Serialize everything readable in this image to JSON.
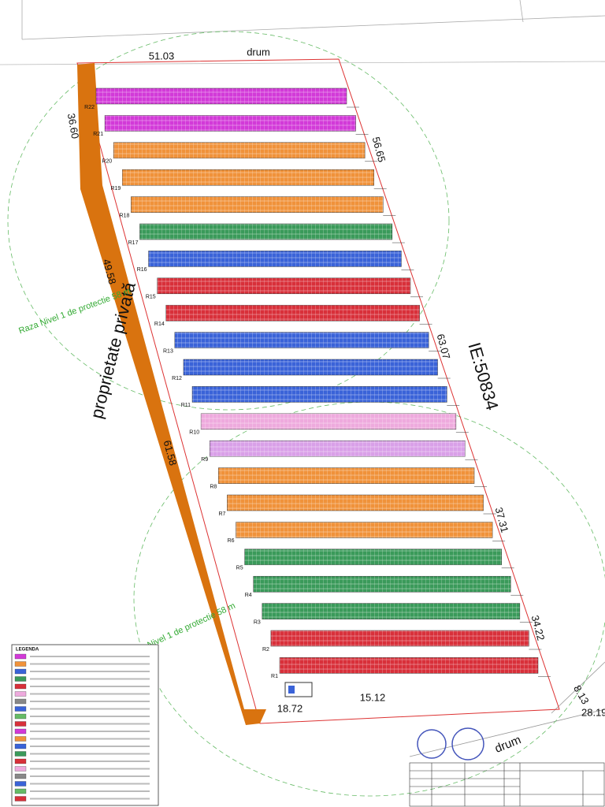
{
  "plan": {
    "road_top": "drum",
    "road_bottom": "drum",
    "dims": {
      "top": "51.03",
      "left1": "36.60",
      "right1": "56.65",
      "left2": "49.58",
      "right2": "63.07",
      "left3": "61.58",
      "right3": "37.31",
      "right4": "34.22",
      "corner1": "8.13",
      "corner2": "28.19",
      "bottom1": "18.72",
      "bottom2": "15.12"
    },
    "parcel_id": "IE:50834",
    "owner_note": "proprietate privată",
    "radius_note": "Raza Nivel 1 de protectie 58 m",
    "legend_title": "LEGENDA",
    "rows": [
      {
        "label": "R22",
        "color": "#d23ad8"
      },
      {
        "label": "R21",
        "color": "#d23ad8"
      },
      {
        "label": "R20",
        "color": "#f0923a"
      },
      {
        "label": "R19",
        "color": "#f0923a"
      },
      {
        "label": "R18",
        "color": "#f0923a"
      },
      {
        "label": "R17",
        "color": "#3a9a5a"
      },
      {
        "label": "R16",
        "color": "#3a63d8"
      },
      {
        "label": "R15",
        "color": "#d8303a"
      },
      {
        "label": "R14",
        "color": "#d8303a"
      },
      {
        "label": "R13",
        "color": "#3a63d8"
      },
      {
        "label": "R12",
        "color": "#3a63d8"
      },
      {
        "label": "R11",
        "color": "#3a63d8"
      },
      {
        "label": "R10",
        "color": "#eeaadd"
      },
      {
        "label": "R9",
        "color": "#d9a0e8"
      },
      {
        "label": "R8",
        "color": "#f0923a"
      },
      {
        "label": "R7",
        "color": "#f0923a"
      },
      {
        "label": "R6",
        "color": "#f0923a"
      },
      {
        "label": "R5",
        "color": "#3a9a5a"
      },
      {
        "label": "R4",
        "color": "#3a9a5a"
      },
      {
        "label": "R3",
        "color": "#3a9a5a"
      },
      {
        "label": "R2",
        "color": "#d8303a"
      },
      {
        "label": "R1",
        "color": "#d8303a"
      }
    ]
  }
}
